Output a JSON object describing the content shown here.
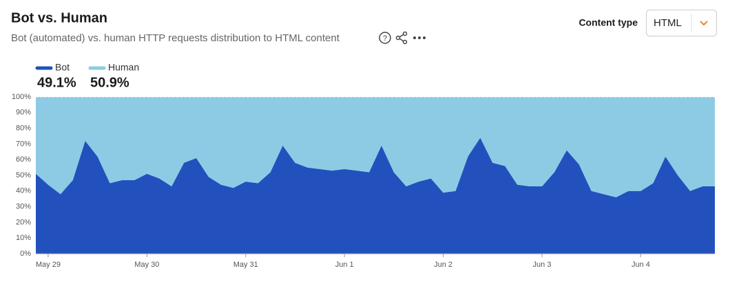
{
  "header": {
    "title": "Bot vs. Human",
    "subtitle": "Bot (automated) vs. human HTTP requests distribution to HTML content",
    "control_label": "Content type",
    "control_value": "HTML"
  },
  "chart_data": {
    "type": "stacked_area",
    "categories": [
      null,
      "May 29",
      null,
      null,
      null,
      null,
      null,
      null,
      null,
      "May 30",
      null,
      null,
      null,
      null,
      null,
      null,
      null,
      "May 31",
      null,
      null,
      null,
      null,
      null,
      null,
      null,
      "Jun 1",
      null,
      null,
      null,
      null,
      null,
      null,
      null,
      "Jun 2",
      null,
      null,
      null,
      null,
      null,
      null,
      null,
      "Jun 3",
      null,
      null,
      null,
      null,
      null,
      null,
      null,
      "Jun 4",
      null,
      null,
      null,
      null,
      null,
      null
    ],
    "series": [
      {
        "name": "Bot",
        "color": "#2251be",
        "total_label": "49.1%",
        "values": [
          51,
          44,
          38,
          47,
          72,
          62,
          45,
          47,
          47,
          51,
          48,
          43,
          58,
          61,
          49,
          44,
          42,
          46,
          45,
          52,
          69,
          58,
          55,
          54,
          53,
          54,
          53,
          52,
          69,
          52,
          43,
          46,
          48,
          39,
          40,
          62,
          74,
          58,
          56,
          44,
          43,
          43,
          52,
          66,
          57,
          40,
          38,
          36,
          40,
          40,
          45,
          62,
          50,
          40,
          43,
          43
        ]
      },
      {
        "name": "Human",
        "color": "#8dcbe4",
        "total_label": "50.9%",
        "values": [
          49,
          56,
          62,
          53,
          28,
          38,
          55,
          53,
          53,
          49,
          52,
          57,
          42,
          39,
          51,
          56,
          58,
          54,
          55,
          48,
          31,
          42,
          45,
          46,
          47,
          46,
          47,
          48,
          31,
          48,
          57,
          54,
          52,
          61,
          60,
          38,
          26,
          42,
          44,
          56,
          57,
          57,
          48,
          34,
          43,
          60,
          62,
          64,
          60,
          60,
          55,
          38,
          50,
          60,
          57,
          57
        ]
      }
    ],
    "ylim": [
      0,
      100
    ],
    "yticks": [
      {
        "value": 0,
        "label": "0%"
      },
      {
        "value": 10,
        "label": "10%"
      },
      {
        "value": 20,
        "label": "20%"
      },
      {
        "value": 30,
        "label": "30%"
      },
      {
        "value": 40,
        "label": "40%"
      },
      {
        "value": 50,
        "label": "50%"
      },
      {
        "value": 60,
        "label": "60%"
      },
      {
        "value": 70,
        "label": "70%"
      },
      {
        "value": 80,
        "label": "80%"
      },
      {
        "value": 90,
        "label": "90%"
      },
      {
        "value": 100,
        "label": "100%"
      }
    ]
  }
}
